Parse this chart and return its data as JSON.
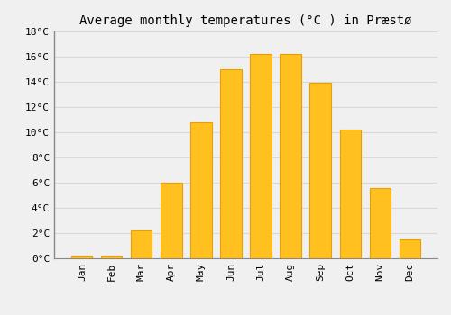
{
  "title": "Average monthly temperatures (°C ) in Præstø",
  "months": [
    "Jan",
    "Feb",
    "Mar",
    "Apr",
    "May",
    "Jun",
    "Jul",
    "Aug",
    "Sep",
    "Oct",
    "Nov",
    "Dec"
  ],
  "values": [
    0.2,
    0.2,
    2.2,
    6.0,
    10.8,
    15.0,
    16.2,
    16.2,
    13.9,
    10.2,
    5.6,
    1.5
  ],
  "bar_color": "#FFC020",
  "bar_edge_color": "#E8A000",
  "background_color": "#F0F0F0",
  "grid_color": "#D8D8D8",
  "spine_color": "#888888",
  "ylim": [
    0,
    18
  ],
  "yticks": [
    0,
    2,
    4,
    6,
    8,
    10,
    12,
    14,
    16,
    18
  ],
  "title_fontsize": 10,
  "tick_fontsize": 8,
  "font_family": "monospace"
}
